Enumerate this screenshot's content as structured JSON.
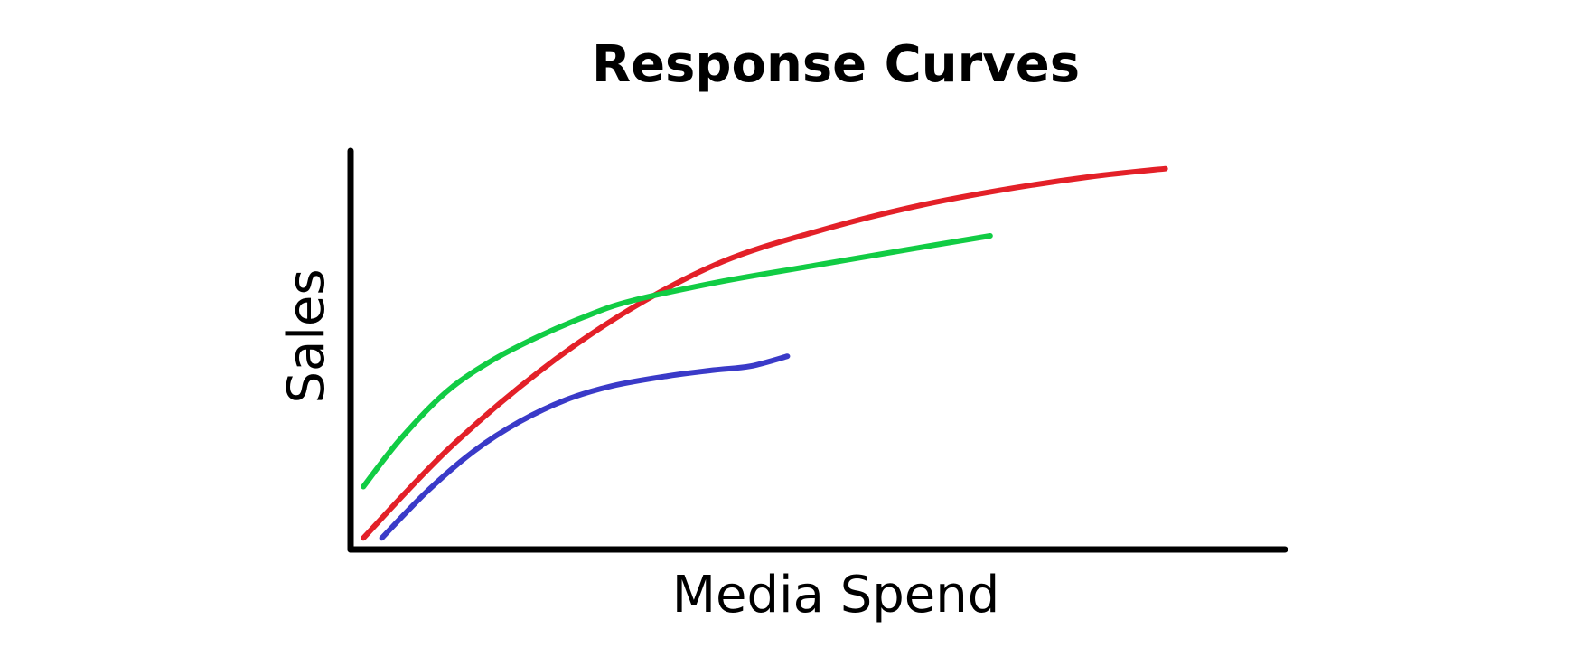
{
  "chart_data": {
    "type": "line",
    "title": "Response Curves",
    "xlabel": "Media Spend",
    "ylabel": "Sales",
    "xlim": [
      0,
      100
    ],
    "ylim": [
      0,
      100
    ],
    "grid": false,
    "ticks": false,
    "legend": "none",
    "series": [
      {
        "color": "#e32028",
        "x": [
          1,
          10,
          20,
          30,
          40,
          50,
          60,
          70,
          80,
          88
        ],
        "y": [
          2,
          24,
          44,
          60,
          72,
          79.5,
          85.5,
          90,
          93.5,
          95.5
        ]
      },
      {
        "color": "#11cc44",
        "x": [
          1,
          5,
          10,
          15,
          20,
          25,
          30,
          40,
          50,
          60,
          69
        ],
        "y": [
          15,
          27,
          39,
          47,
          53,
          58,
          62,
          67,
          71,
          75,
          78.5
        ]
      },
      {
        "color": "#3a3ac8",
        "x": [
          3,
          8,
          13,
          18,
          23,
          28,
          34,
          39,
          43,
          47
        ],
        "y": [
          2,
          14,
          24,
          31.5,
          37,
          40.5,
          43,
          44.5,
          45.5,
          48
        ]
      }
    ]
  }
}
